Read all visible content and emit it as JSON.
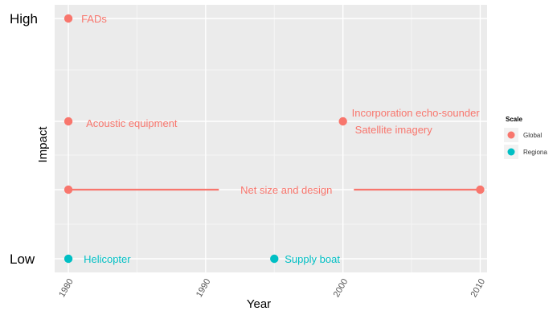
{
  "chart_data": {
    "type": "scatter",
    "xlabel": "Year",
    "ylabel": "Impact",
    "xlim": [
      1979,
      2010.5
    ],
    "x_ticks": [
      "1980",
      "1990",
      "2000",
      "2010"
    ],
    "y_categories": [
      "Low",
      "",
      "",
      "High"
    ],
    "legend": {
      "title": "Scale",
      "position": "right",
      "items": [
        {
          "name": "Global",
          "color": "#F8766D"
        },
        {
          "name": "Regiona",
          "color": "#00BFC4"
        }
      ]
    },
    "points": [
      {
        "year": 1980,
        "level": 4,
        "scale": "Global",
        "label": "FADs"
      },
      {
        "year": 1980,
        "level": 3,
        "scale": "Global",
        "label": "Acoustic equipment"
      },
      {
        "year": 2000,
        "level": 3,
        "scale": "Global",
        "label": "Incorporation echo-sounder"
      },
      {
        "year": 2000,
        "level": 3,
        "scale": "Global",
        "label": "Satellite imagery"
      },
      {
        "year": 1980,
        "level": 2,
        "scale": "Global",
        "label": ""
      },
      {
        "year": 2010,
        "level": 2,
        "scale": "Global",
        "label": ""
      },
      {
        "year": 1980,
        "level": 1,
        "scale": "Regiona",
        "label": "Helicopter"
      },
      {
        "year": 1995,
        "level": 1,
        "scale": "Regiona",
        "label": "Supply boat"
      }
    ],
    "segments": [
      {
        "x1": 1980,
        "x2": 2010,
        "level": 2,
        "scale": "Global",
        "label": "Net size and design"
      }
    ],
    "grid": true
  },
  "colors": {
    "panel": "#EBEBEB",
    "grid_major": "#FFFFFF",
    "grid_minor": "#F5F5F5"
  }
}
